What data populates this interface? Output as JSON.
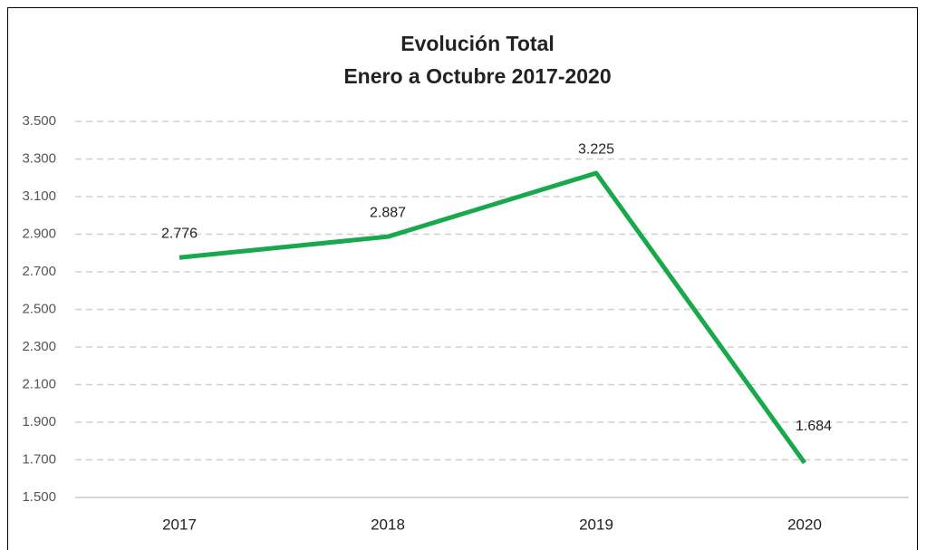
{
  "chart_data": {
    "type": "line",
    "title": "Evolución Total",
    "subtitle": "Enero a Octubre 2017-2020",
    "categories": [
      "2017",
      "2018",
      "2019",
      "2020"
    ],
    "series": [
      {
        "name": "Total",
        "color": "#19a84c",
        "values": [
          2776,
          2887,
          3225,
          1684
        ],
        "value_labels": [
          "2.776",
          "2.887",
          "3.225",
          "1.684"
        ]
      }
    ],
    "ylim": [
      1500,
      3500
    ],
    "yticks": [
      {
        "value": 1500,
        "label": "1.500"
      },
      {
        "value": 1700,
        "label": "1.700"
      },
      {
        "value": 1900,
        "label": "1.900"
      },
      {
        "value": 2100,
        "label": "2.100"
      },
      {
        "value": 2300,
        "label": "2.300"
      },
      {
        "value": 2500,
        "label": "2.500"
      },
      {
        "value": 2700,
        "label": "2.700"
      },
      {
        "value": 2900,
        "label": "2.900"
      },
      {
        "value": 3100,
        "label": "3.100"
      },
      {
        "value": 3300,
        "label": "3.300"
      },
      {
        "value": 3500,
        "label": "3.500"
      }
    ],
    "grid": true
  }
}
